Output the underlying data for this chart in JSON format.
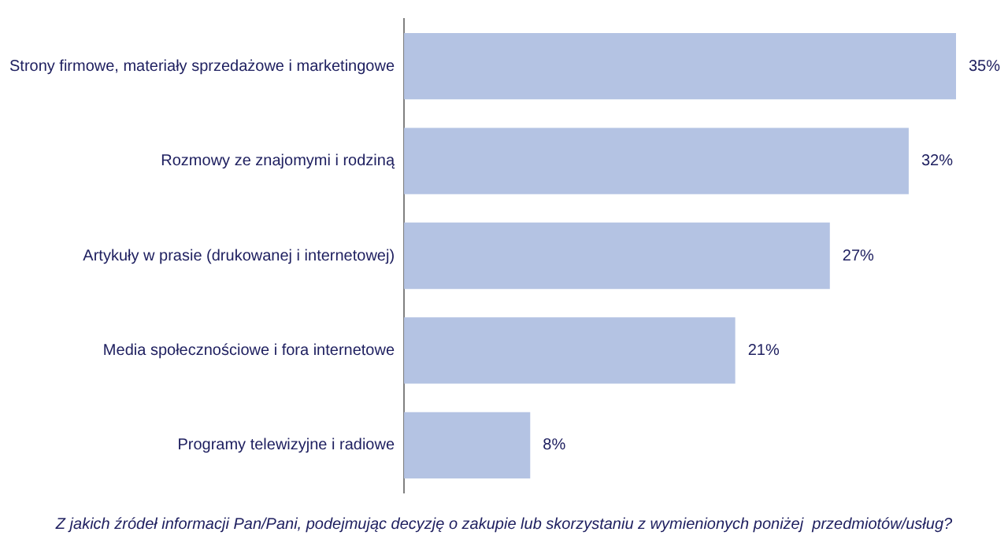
{
  "chart_data": {
    "type": "bar",
    "orientation": "horizontal",
    "categories": [
      "Strony firmowe, materiały sprzedażowe i marketingowe",
      "Rozmowy ze znajomymi i rodziną",
      "Artykuły w prasie (drukowanej i internetowej)",
      "Media społecznościowe i fora internetowe",
      "Programy telewizyjne i radiowe"
    ],
    "values": [
      35,
      32,
      27,
      21,
      8
    ],
    "value_labels": [
      "35%",
      "32%",
      "27%",
      "21%",
      "8%"
    ],
    "color": "#b4c3e3",
    "annotations": [
      "Z jakich źródeł informacji Pan/Pani, podejmując decyzję o zakupie lub skorzystaniu z wymienionych poniżej  przedmiotów/usług?"
    ]
  }
}
